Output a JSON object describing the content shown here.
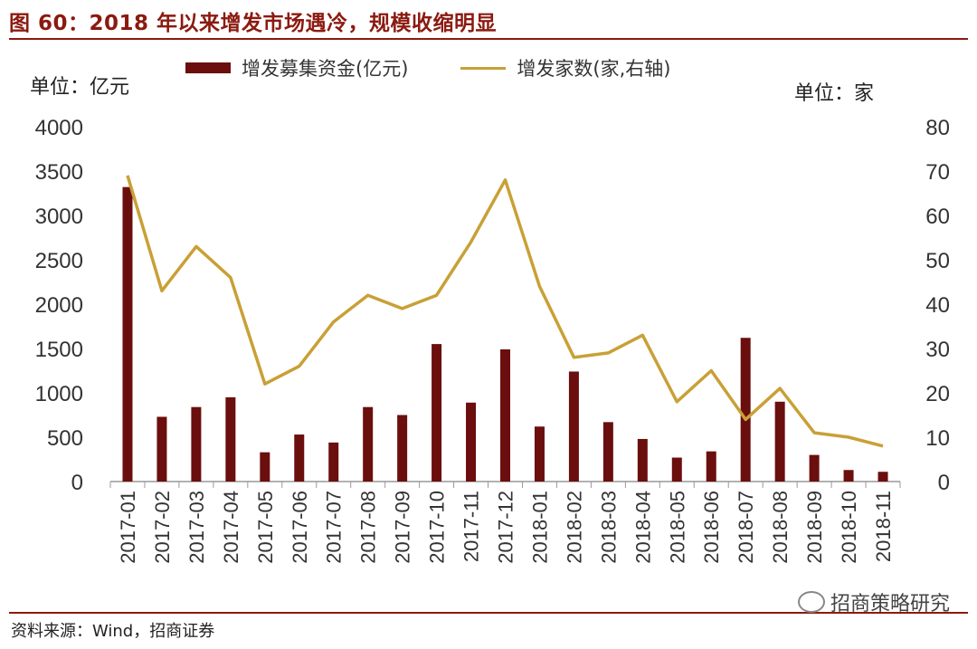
{
  "title": "图 60：2018 年以来增发市场遇冷，规模收缩明显",
  "unit_left": "单位：亿元",
  "unit_right": "单位：家",
  "source": "资料来源：Wind，招商证券",
  "watermark": "招商策略研究",
  "colors": {
    "bar": "#6b0e0e",
    "line": "#c9a036",
    "accent": "#8b1a10"
  },
  "chart_data": {
    "type": "bar",
    "title": "",
    "categories": [
      "2017-01",
      "2017-02",
      "2017-03",
      "2017-04",
      "2017-05",
      "2017-06",
      "2017-07",
      "2017-08",
      "2017-09",
      "2017-10",
      "2017-11",
      "2017-12",
      "2018-01",
      "2018-02",
      "2018-03",
      "2018-04",
      "2018-05",
      "2018-06",
      "2018-07",
      "2018-08",
      "2018-09",
      "2018-10",
      "2018-11"
    ],
    "series": [
      {
        "name": "增发募集资金(亿元)",
        "type": "bar",
        "axis": "left",
        "values": [
          3320,
          730,
          840,
          950,
          330,
          530,
          440,
          840,
          750,
          1550,
          890,
          1490,
          620,
          1240,
          670,
          480,
          270,
          340,
          1620,
          900,
          300,
          130,
          110
        ]
      },
      {
        "name": "增发家数(家,右轴)",
        "type": "line",
        "axis": "right",
        "values": [
          69,
          43,
          53,
          46,
          22,
          26,
          36,
          42,
          39,
          42,
          54,
          68,
          44,
          28,
          29,
          33,
          18,
          25,
          14,
          21,
          11,
          10,
          8
        ]
      }
    ],
    "y_left": {
      "min": 0,
      "max": 4000,
      "ticks": [
        "0",
        "500",
        "1000",
        "1500",
        "2000",
        "2500",
        "3000",
        "3500",
        "4000"
      ]
    },
    "y_right": {
      "min": 0,
      "max": 80,
      "ticks": [
        "0",
        "10",
        "20",
        "30",
        "40",
        "50",
        "60",
        "70",
        "80"
      ]
    },
    "legend_position": "top",
    "grid": false
  }
}
